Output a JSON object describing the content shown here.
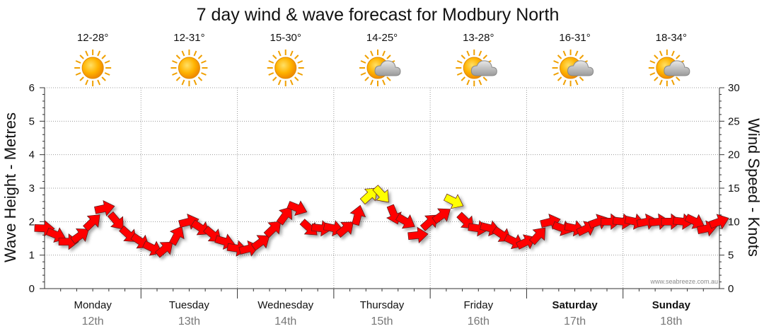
{
  "chart_data": {
    "type": "line",
    "title": "7 day wind & wave forecast for Modbury North",
    "ylabel_left": "Wave Height - Metres",
    "ylabel_right": "Wind Speed - Knots",
    "ylim_left": [
      0,
      6
    ],
    "ylim_right": [
      0,
      30
    ],
    "left_ticks": [
      "0",
      "1",
      "2",
      "3",
      "4",
      "5",
      "6"
    ],
    "right_ticks": [
      "0",
      "5",
      "10",
      "15",
      "20",
      "25",
      "30"
    ],
    "days": [
      {
        "name": "Monday",
        "date": "12th",
        "temp": "12-28°",
        "icon": "sunny",
        "bold": false
      },
      {
        "name": "Tuesday",
        "date": "13th",
        "temp": "12-31°",
        "icon": "sunny",
        "bold": false
      },
      {
        "name": "Wednesday",
        "date": "14th",
        "temp": "15-30°",
        "icon": "sunny",
        "bold": false
      },
      {
        "name": "Thursday",
        "date": "15th",
        "temp": "14-25°",
        "icon": "partly-cloudy",
        "bold": false
      },
      {
        "name": "Friday",
        "date": "16th",
        "temp": "13-28°",
        "icon": "partly-cloudy",
        "bold": false
      },
      {
        "name": "Saturday",
        "date": "17th",
        "temp": "16-31°",
        "icon": "partly-cloudy",
        "bold": true
      },
      {
        "name": "Sunday",
        "date": "18th",
        "temp": "18-34°",
        "icon": "partly-cloudy",
        "bold": true
      }
    ],
    "wind_series": {
      "name": "Wind speed (knots) with direction arrows",
      "x_unit": "hours from start",
      "x": [
        0,
        3,
        6,
        9,
        12,
        15,
        18,
        21,
        24,
        27,
        30,
        33,
        36,
        39,
        42,
        45,
        48,
        51,
        54,
        57,
        60,
        63,
        66,
        69,
        72,
        75,
        78,
        81,
        84,
        87,
        90,
        93,
        96,
        99,
        102,
        105,
        108,
        111,
        114,
        117,
        120,
        123,
        126,
        129,
        132,
        135,
        138,
        141,
        144,
        147,
        150,
        153,
        156,
        159,
        162,
        165,
        168
      ],
      "values": [
        9,
        8,
        7,
        8,
        10,
        12,
        10,
        8,
        7,
        6,
        6,
        8,
        10,
        9,
        8,
        7,
        6,
        6,
        7,
        9,
        11,
        12,
        9,
        9,
        9,
        9,
        11,
        14,
        14,
        11,
        10,
        8,
        10,
        11,
        13,
        10,
        9,
        9,
        8,
        7,
        7,
        8,
        10,
        9,
        9,
        9,
        10,
        10,
        10,
        10,
        10,
        10,
        10,
        10,
        10,
        9,
        10
      ],
      "strong_wind_color": "#ffff00",
      "normal_wind_color": "#ff0000"
    },
    "legend": "none"
  },
  "credit": "www.seabreeze.com.au"
}
